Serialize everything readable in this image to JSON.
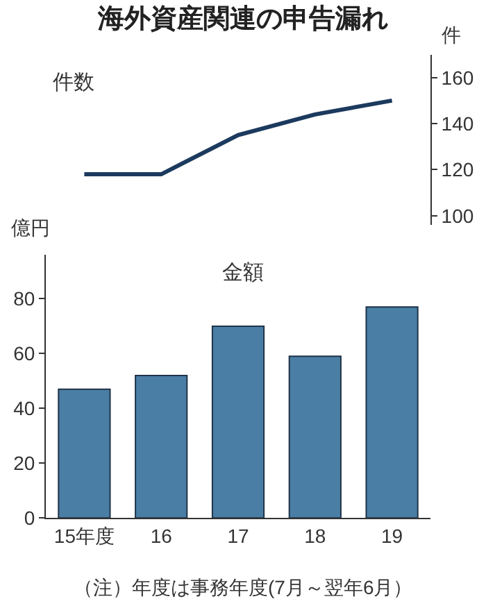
{
  "chart_data": [
    {
      "type": "line",
      "title": "海外資産関連の申告漏れ",
      "subtitle": "件数",
      "ylabel": "件",
      "categories": [
        null,
        null,
        null,
        null,
        null
      ],
      "series": [
        {
          "color": "#1c3a5e",
          "values": [
            118,
            118,
            135,
            144,
            150
          ]
        }
      ],
      "ylim": [
        96,
        170
      ],
      "yticks": [
        100,
        120,
        140,
        160
      ],
      "tick_labels": "y",
      "marker": "none",
      "line_style": "solid"
    },
    {
      "type": "bar",
      "subtitle": "金額",
      "ylabel": "億円",
      "categories": [
        "15年度",
        "16",
        "17",
        "18",
        "19"
      ],
      "series": [
        {
          "color": "#4a7ea5",
          "values": [
            47,
            52,
            70,
            59,
            77
          ]
        }
      ],
      "ylim": [
        0,
        96
      ],
      "yticks": [
        0,
        20,
        40,
        60,
        80
      ],
      "annotations": [
        "（注）年度は事務年度(7月～翌年6月）"
      ]
    }
  ]
}
